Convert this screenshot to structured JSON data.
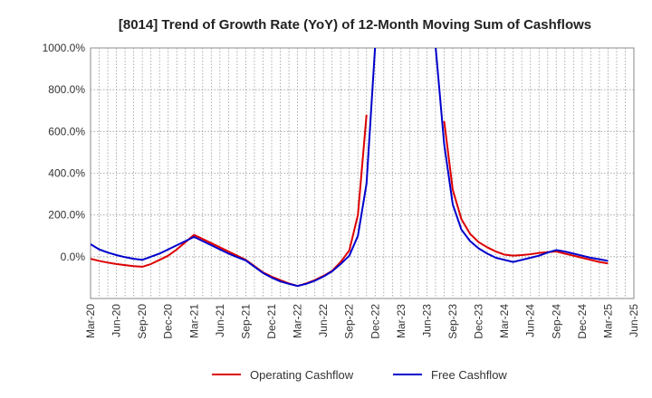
{
  "chart_data": {
    "type": "line",
    "title": "[8014]  Trend of Growth Rate (YoY) of 12-Month Moving Sum of Cashflows",
    "xlabel": "",
    "ylabel": "",
    "ylim": [
      -200,
      1000
    ],
    "y_ticks": [
      0,
      200,
      400,
      600,
      800,
      1000
    ],
    "y_tick_labels": [
      "0.0%",
      "200.0%",
      "400.0%",
      "600.0%",
      "800.0%",
      "1000.0%"
    ],
    "x_tick_labels": [
      "Mar-20",
      "Jun-20",
      "Sep-20",
      "Dec-20",
      "Mar-21",
      "Jun-21",
      "Sep-21",
      "Dec-21",
      "Mar-22",
      "Jun-22",
      "Sep-22",
      "Dec-22",
      "Mar-23",
      "Jun-23",
      "Sep-23",
      "Dec-23",
      "Mar-24",
      "Jun-24",
      "Sep-24",
      "Dec-24",
      "Mar-25",
      "Jun-25"
    ],
    "grid": true,
    "legend_position": "bottom",
    "x": [
      "Mar-20",
      "Apr-20",
      "May-20",
      "Jun-20",
      "Jul-20",
      "Aug-20",
      "Sep-20",
      "Oct-20",
      "Nov-20",
      "Dec-20",
      "Jan-21",
      "Feb-21",
      "Mar-21",
      "Apr-21",
      "May-21",
      "Jun-21",
      "Jul-21",
      "Aug-21",
      "Sep-21",
      "Oct-21",
      "Nov-21",
      "Dec-21",
      "Jan-22",
      "Feb-22",
      "Mar-22",
      "Apr-22",
      "May-22",
      "Jun-22",
      "Jul-22",
      "Aug-22",
      "Sep-22",
      "Oct-22",
      "Nov-22",
      "Dec-22",
      "Jan-23",
      "Feb-23",
      "Mar-23",
      "Apr-23",
      "May-23",
      "Jun-23",
      "Jul-23",
      "Aug-23",
      "Sep-23",
      "Oct-23",
      "Nov-23",
      "Dec-23",
      "Jan-24",
      "Feb-24",
      "Mar-24",
      "Apr-24",
      "May-24",
      "Jun-24",
      "Jul-24",
      "Aug-24",
      "Sep-24",
      "Oct-24",
      "Nov-24",
      "Dec-24",
      "Jan-25",
      "Feb-25",
      "Mar-25"
    ],
    "series": [
      {
        "name": "Operating Cashflow",
        "color": "#dd0000",
        "values": [
          -10,
          -20,
          -28,
          -35,
          -40,
          -45,
          -48,
          -35,
          -15,
          5,
          35,
          70,
          105,
          85,
          65,
          45,
          25,
          5,
          -15,
          -45,
          -75,
          -95,
          -112,
          -128,
          -140,
          -128,
          -112,
          -92,
          -68,
          -25,
          30,
          200,
          680,
          null,
          null,
          null,
          null,
          null,
          null,
          null,
          null,
          650,
          320,
          180,
          110,
          70,
          45,
          25,
          10,
          5,
          8,
          12,
          18,
          22,
          25,
          15,
          5,
          -5,
          -15,
          -25,
          -32
        ]
      },
      {
        "name": "Free Cashflow",
        "color": "#0000cc",
        "values": [
          60,
          35,
          20,
          8,
          -2,
          -10,
          -15,
          0,
          15,
          35,
          55,
          75,
          95,
          75,
          55,
          35,
          15,
          -2,
          -18,
          -48,
          -78,
          -100,
          -118,
          -130,
          -140,
          -130,
          -115,
          -95,
          -70,
          -35,
          5,
          100,
          350,
          1010,
          null,
          null,
          null,
          null,
          null,
          null,
          1010,
          540,
          250,
          130,
          75,
          40,
          15,
          -5,
          -15,
          -25,
          -15,
          -5,
          5,
          20,
          32,
          25,
          15,
          5,
          -5,
          -12,
          -20
        ]
      }
    ]
  }
}
